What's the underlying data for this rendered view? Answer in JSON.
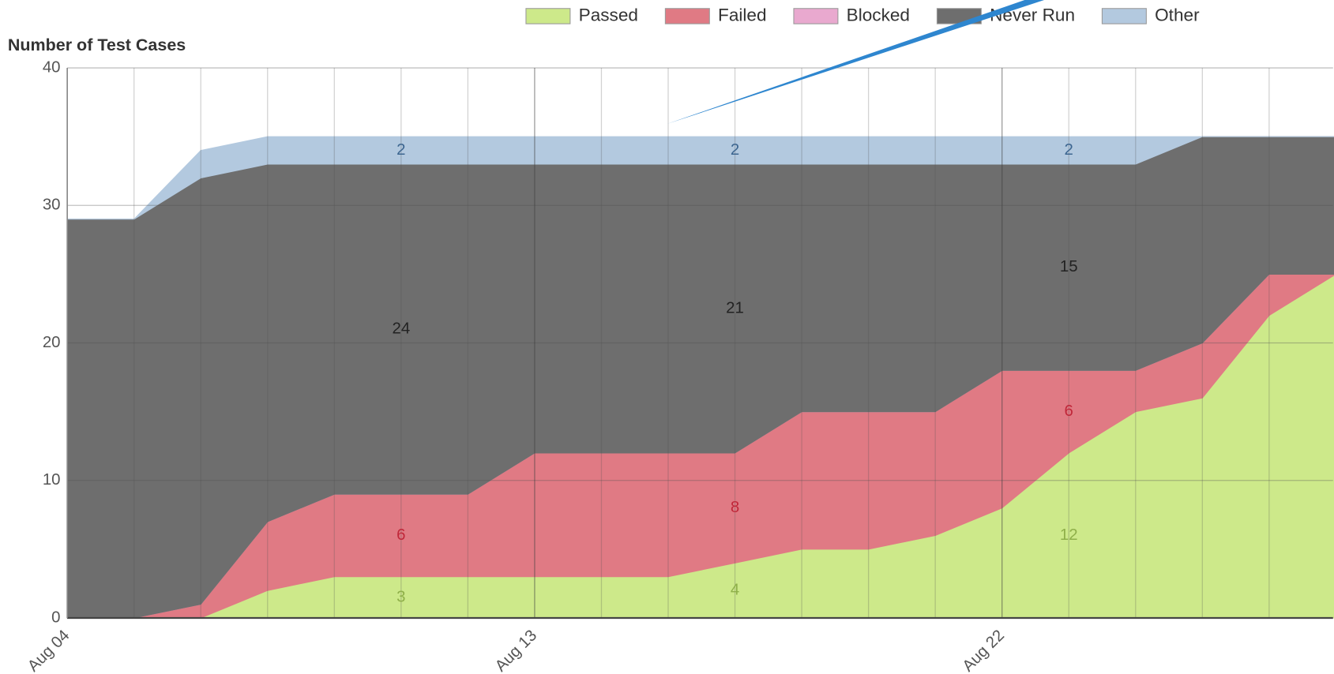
{
  "chart_data": {
    "type": "stacked_area",
    "y_axis_label": "Number of Test Cases",
    "categories": [
      "Aug 04",
      null,
      null,
      null,
      null,
      null,
      null,
      "Aug 13",
      null,
      null,
      null,
      null,
      null,
      null,
      "Aug 22",
      null,
      null,
      null,
      null,
      null
    ],
    "series": [
      {
        "name": "Passed",
        "color": "#cde98a",
        "values": [
          0,
          0,
          0,
          2,
          3,
          3,
          3,
          3,
          3,
          3,
          4,
          5,
          5,
          6,
          8,
          12,
          15,
          16,
          22,
          25
        ]
      },
      {
        "name": "Failed",
        "color": "#e07a84",
        "values": [
          0,
          0,
          1,
          5,
          6,
          6,
          6,
          9,
          9,
          9,
          8,
          10,
          10,
          9,
          10,
          6,
          3,
          4,
          3,
          0
        ]
      },
      {
        "name": "Blocked",
        "color": "#e9a9cf",
        "values": [
          0,
          0,
          0,
          0,
          0,
          0,
          0,
          0,
          0,
          0,
          0,
          0,
          0,
          0,
          0,
          0,
          0,
          0,
          0,
          0
        ]
      },
      {
        "name": "Never Run",
        "color": "#6e6e6e",
        "values": [
          29,
          29,
          31,
          26,
          24,
          24,
          24,
          21,
          21,
          21,
          21,
          18,
          18,
          18,
          15,
          15,
          15,
          15,
          10,
          10
        ]
      },
      {
        "name": "Other",
        "color": "#b3c9df",
        "values": [
          0,
          0,
          2,
          2,
          2,
          2,
          2,
          2,
          2,
          2,
          2,
          2,
          2,
          2,
          2,
          2,
          2,
          0,
          0,
          0
        ]
      }
    ],
    "ylim": [
      0,
      40
    ],
    "yticks": [
      0,
      10,
      20,
      30,
      40
    ],
    "grid": true,
    "legend": "top"
  }
}
